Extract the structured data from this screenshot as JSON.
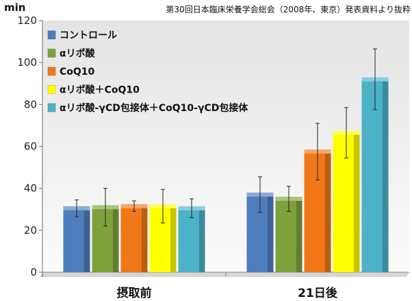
{
  "chart_data": {
    "type": "bar",
    "source_note": "第30回日本臨床栄養学会総会（2008年、東京）発表資料より抜粋",
    "ylabel": "min",
    "ylim": [
      0,
      120
    ],
    "yticks": [
      0,
      20,
      40,
      60,
      80,
      100,
      120
    ],
    "grid": false,
    "legend_position": "top-left",
    "categories": [
      "摂取前",
      "21日後"
    ],
    "series": [
      {
        "name": "コントロール",
        "color": "#4e7dbd",
        "values": [
          30.5,
          37
        ],
        "error": [
          4,
          8.5
        ]
      },
      {
        "name": "αリポ酸",
        "color": "#7ea13c",
        "values": [
          31,
          35
        ],
        "error": [
          9,
          6
        ]
      },
      {
        "name": "CoQ10",
        "color": "#f07818",
        "values": [
          31.5,
          57.5
        ],
        "error": [
          2.5,
          13.5
        ]
      },
      {
        "name": "αリポ酸＋CoQ10",
        "color": "#ffff00",
        "values": [
          31.5,
          66.5
        ],
        "error": [
          8,
          12
        ]
      },
      {
        "name": "αリポ酸-γCD包接体＋CoQ10-γCD包接体",
        "color": "#4bb2c8",
        "values": [
          30.5,
          92
        ],
        "error": [
          4.5,
          14.5
        ]
      }
    ]
  }
}
